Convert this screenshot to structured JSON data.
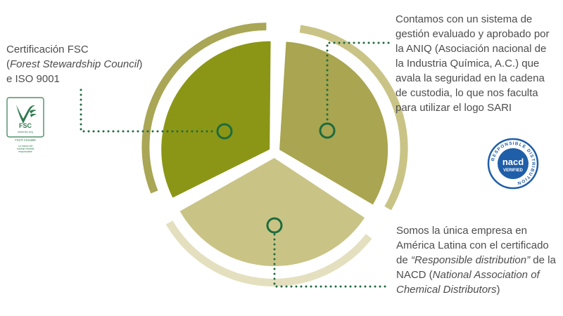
{
  "callouts": {
    "fsc": {
      "line1": "Certificación FSC",
      "line2_open": "(",
      "line2_italic": "Forest Stewardship Council",
      "line2_close": ")",
      "line3": "e ISO 9001"
    },
    "aniq": {
      "text": "Contamos con un sistema de gestión evaluado y aprobado por la ANIQ (Asociación nacional de la Industria Química, A.C.) que avala la seguridad en la cadena de custodia, lo que nos faculta para utilizar el logo SARI"
    },
    "rd": {
      "part1": "Somos la única empresa en América Latina con el certificado de ",
      "part2_italic": "“Responsible distribution”",
      "part3": " de la NACD (",
      "part4_italic": "National Association of Chemical Distributors",
      "part5": ")"
    }
  },
  "logos": {
    "fsc": {
      "mark": "FSC",
      "url": "www.fsc.org",
      "code": "FSC® C011866",
      "tagline": "La marca del manejo forestal responsable"
    },
    "nacd": {
      "ring_text": "RESPONSIBLE DISTRIBUTION",
      "name": "nacd",
      "verified": "VERIFIED"
    }
  },
  "colors": {
    "segment_fsc": "#8b9616",
    "segment_aniq": "#a9a550",
    "segment_rd": "#c9c486",
    "ring_fsc": "#a9a655",
    "ring_aniq": "#c9c486",
    "ring_rd": "#e4e0bf",
    "connector": "#1e6b3e",
    "nacd_blue": "#1f5ea8"
  }
}
